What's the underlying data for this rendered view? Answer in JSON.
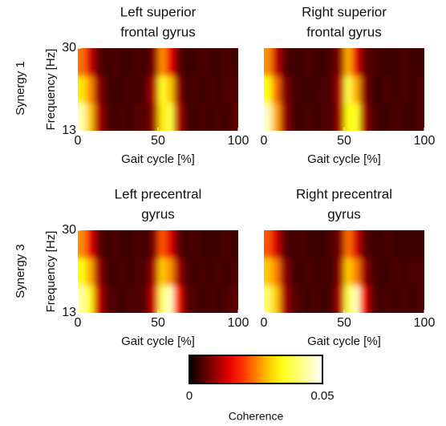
{
  "chart_data": [
    {
      "type": "heatmap",
      "title": [
        "Left superior",
        "frontal gyrus"
      ],
      "xlabel": "Gait cycle [%]",
      "ylabel": "Frequency [Hz]",
      "xlim": [
        0,
        100
      ],
      "ylim": [
        13,
        30
      ],
      "xticks": [
        0,
        50,
        100
      ],
      "yticks": [
        13,
        30
      ],
      "values": [
        [
          0.045,
          0.03,
          0.012,
          0.006,
          0.004,
          0.005,
          0.004,
          0.006,
          0.005,
          0.01,
          0.032,
          0.038,
          0.012,
          0.005,
          0.004,
          0.005,
          0.004,
          0.005,
          0.004,
          0.006
        ],
        [
          0.032,
          0.026,
          0.01,
          0.005,
          0.004,
          0.004,
          0.005,
          0.004,
          0.006,
          0.012,
          0.036,
          0.03,
          0.01,
          0.004,
          0.005,
          0.004,
          0.005,
          0.004,
          0.005,
          0.005
        ],
        [
          0.024,
          0.014,
          0.006,
          0.004,
          0.005,
          0.004,
          0.004,
          0.005,
          0.004,
          0.008,
          0.026,
          0.016,
          0.006,
          0.004,
          0.004,
          0.005,
          0.004,
          0.004,
          0.005,
          0.004
        ]
      ]
    },
    {
      "type": "heatmap",
      "title": [
        "Right superior",
        "frontal gyrus"
      ],
      "xlabel": "Gait cycle [%]",
      "xlim": [
        0,
        100
      ],
      "ylim": [
        13,
        30
      ],
      "xticks": [
        0,
        50,
        100
      ],
      "values": [
        [
          0.046,
          0.028,
          0.011,
          0.005,
          0.004,
          0.005,
          0.004,
          0.005,
          0.005,
          0.011,
          0.034,
          0.036,
          0.011,
          0.005,
          0.004,
          0.004,
          0.005,
          0.004,
          0.004,
          0.005
        ],
        [
          0.034,
          0.024,
          0.009,
          0.005,
          0.004,
          0.004,
          0.004,
          0.005,
          0.005,
          0.012,
          0.038,
          0.028,
          0.009,
          0.004,
          0.004,
          0.005,
          0.004,
          0.005,
          0.004,
          0.005
        ],
        [
          0.026,
          0.013,
          0.006,
          0.004,
          0.004,
          0.005,
          0.004,
          0.004,
          0.005,
          0.009,
          0.028,
          0.015,
          0.006,
          0.005,
          0.004,
          0.004,
          0.004,
          0.005,
          0.004,
          0.004
        ]
      ]
    },
    {
      "type": "heatmap",
      "title": [
        "Left precentral",
        "gyrus"
      ],
      "xlabel": "Gait cycle [%]",
      "ylabel": "Frequency [Hz]",
      "xlim": [
        0,
        100
      ],
      "ylim": [
        13,
        30
      ],
      "xticks": [
        0,
        50,
        100
      ],
      "yticks": [
        13,
        30
      ],
      "values": [
        [
          0.044,
          0.034,
          0.014,
          0.006,
          0.005,
          0.004,
          0.005,
          0.005,
          0.006,
          0.014,
          0.04,
          0.046,
          0.018,
          0.006,
          0.005,
          0.004,
          0.005,
          0.004,
          0.005,
          0.006
        ],
        [
          0.034,
          0.028,
          0.011,
          0.005,
          0.004,
          0.005,
          0.004,
          0.005,
          0.005,
          0.011,
          0.03,
          0.026,
          0.011,
          0.005,
          0.004,
          0.005,
          0.004,
          0.005,
          0.004,
          0.005
        ],
        [
          0.026,
          0.016,
          0.007,
          0.004,
          0.005,
          0.004,
          0.004,
          0.005,
          0.004,
          0.008,
          0.022,
          0.015,
          0.006,
          0.004,
          0.005,
          0.004,
          0.004,
          0.004,
          0.005,
          0.004
        ]
      ]
    },
    {
      "type": "heatmap",
      "title": [
        "Right precentral",
        "gyrus"
      ],
      "xlabel": "Gait cycle [%]",
      "xlim": [
        0,
        100
      ],
      "ylim": [
        13,
        30
      ],
      "xticks": [
        0,
        50,
        100
      ],
      "values": [
        [
          0.04,
          0.03,
          0.012,
          0.006,
          0.005,
          0.004,
          0.005,
          0.004,
          0.005,
          0.012,
          0.038,
          0.046,
          0.016,
          0.006,
          0.004,
          0.005,
          0.004,
          0.005,
          0.004,
          0.005
        ],
        [
          0.03,
          0.025,
          0.01,
          0.005,
          0.004,
          0.005,
          0.004,
          0.005,
          0.004,
          0.01,
          0.03,
          0.025,
          0.01,
          0.005,
          0.004,
          0.004,
          0.005,
          0.004,
          0.005,
          0.005
        ],
        [
          0.022,
          0.014,
          0.006,
          0.004,
          0.005,
          0.004,
          0.004,
          0.004,
          0.005,
          0.008,
          0.024,
          0.014,
          0.006,
          0.004,
          0.004,
          0.005,
          0.004,
          0.004,
          0.004,
          0.004
        ]
      ]
    }
  ],
  "row_labels": [
    "Synergy 1",
    "Synergy 3"
  ],
  "colorbar": {
    "label": "Coherence",
    "lim": [
      0,
      0.05
    ],
    "ticks": [
      0,
      0.05
    ]
  }
}
